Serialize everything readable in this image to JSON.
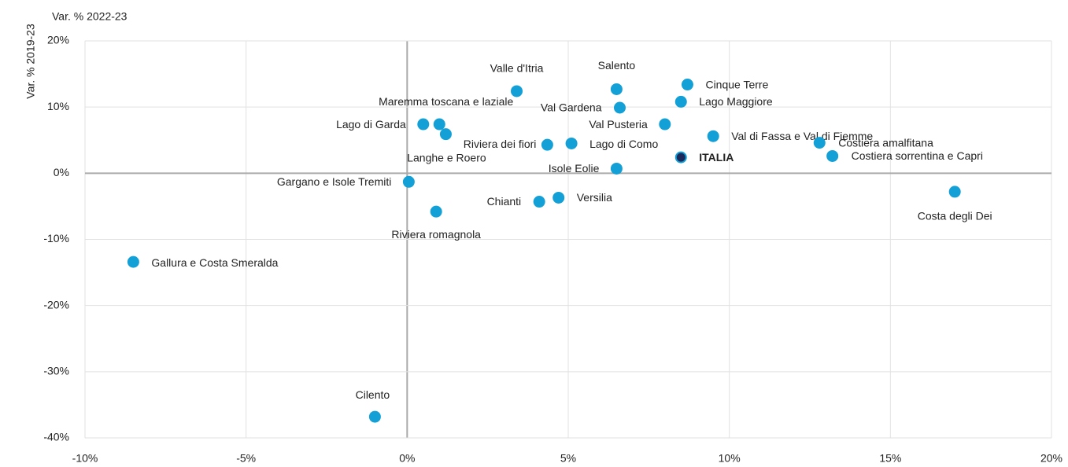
{
  "chart_data": {
    "type": "scatter",
    "x_label": "Var. % 2022-23",
    "y_label": "Var. % 2019-23",
    "labels": [
      "Valle d'Itria",
      "Salento",
      "Cinque Terre",
      "Lago Maggiore",
      "Val Gardena",
      "Maremma toscana e laziale",
      "Lago di Garda",
      "Langhe e Roero",
      "Val Pusteria",
      "Val di Fassa e Val di Fiemme",
      "Riviera dei fiori",
      "Lago di Como",
      "ITALIA",
      "Costiera amalfitana",
      "Costiera sorrentina e Capri",
      "Isole Eolie",
      "Gargano e Isole Tremiti",
      "Chianti",
      "Versilia",
      "Riviera romagnola",
      "Costa degli Dei",
      "Gallura e Costa Smeralda",
      "Cilento"
    ],
    "x": [
      3.4,
      6.5,
      8.7,
      8.5,
      6.6,
      1.0,
      0.5,
      1.2,
      8.0,
      9.5,
      4.35,
      5.1,
      8.5,
      12.8,
      13.2,
      6.5,
      0.05,
      4.1,
      4.7,
      0.9,
      17.0,
      -8.5,
      -1.0
    ],
    "y": [
      12.4,
      12.7,
      13.4,
      10.8,
      9.9,
      7.4,
      7.4,
      5.9,
      7.4,
      5.6,
      4.3,
      4.5,
      2.4,
      4.6,
      2.6,
      0.7,
      -1.3,
      -4.3,
      -3.7,
      -5.8,
      -2.8,
      -13.4,
      -36.8
    ],
    "point_colors": [
      "#12a0d7",
      "#12a0d7",
      "#12a0d7",
      "#12a0d7",
      "#12a0d7",
      "#12a0d7",
      "#12a0d7",
      "#12a0d7",
      "#12a0d7",
      "#12a0d7",
      "#12a0d7",
      "#12a0d7",
      "#1b2a5a",
      "#12a0d7",
      "#12a0d7",
      "#12a0d7",
      "#12a0d7",
      "#12a0d7",
      "#12a0d7",
      "#12a0d7",
      "#12a0d7",
      "#12a0d7",
      "#12a0d7"
    ],
    "xlim": [
      -10,
      20
    ],
    "ylim": [
      -40,
      20
    ],
    "xticks": [
      {
        "value": -10,
        "label": "-10%"
      },
      {
        "value": -5,
        "label": "-5%"
      },
      {
        "value": 0,
        "label": "0%"
      },
      {
        "value": 5,
        "label": "5%"
      },
      {
        "value": 10,
        "label": "10%"
      },
      {
        "value": 15,
        "label": "15%"
      },
      {
        "value": 20,
        "label": "20%"
      }
    ],
    "yticks": [
      {
        "value": -40,
        "label": "-40%"
      },
      {
        "value": -30,
        "label": "-30%"
      },
      {
        "value": -20,
        "label": "-20%"
      },
      {
        "value": -10,
        "label": "-10%"
      },
      {
        "value": 0,
        "label": "0%"
      },
      {
        "value": 10,
        "label": "10%"
      },
      {
        "value": 20,
        "label": "20%"
      }
    ],
    "grid": true
  }
}
